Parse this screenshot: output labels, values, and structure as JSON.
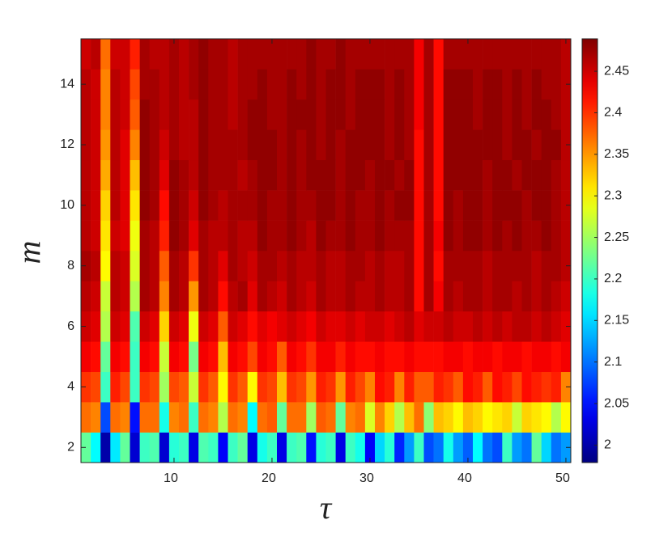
{
  "chart_data": {
    "type": "heatmap",
    "xlabel": "τ",
    "ylabel": "m",
    "colormap": "jet",
    "x": [
      1,
      2,
      3,
      4,
      5,
      6,
      7,
      8,
      9,
      10,
      11,
      12,
      13,
      14,
      15,
      16,
      17,
      18,
      19,
      20,
      21,
      22,
      23,
      24,
      25,
      26,
      27,
      28,
      29,
      30,
      31,
      32,
      33,
      34,
      35,
      36,
      37,
      38,
      39,
      40,
      41,
      42,
      43,
      44,
      45,
      46,
      47,
      48,
      49,
      50
    ],
    "y": [
      2,
      3,
      4,
      5,
      6,
      7,
      8,
      9,
      10,
      11,
      12,
      13,
      14,
      15
    ],
    "xlim": [
      0.5,
      50.5
    ],
    "ylim": [
      1.5,
      15.5
    ],
    "xticks": [
      10,
      20,
      30,
      40,
      50
    ],
    "yticks": [
      2,
      4,
      6,
      8,
      10,
      12,
      14
    ],
    "clim": [
      1.979,
      2.489
    ],
    "cticks": [
      2,
      2.05,
      2.1,
      2.15,
      2.2,
      2.25,
      2.3,
      2.35,
      2.4,
      2.45
    ],
    "z": [
      [
        2.22,
        2.17,
        2.0,
        2.16,
        2.22,
        2.02,
        2.2,
        2.21,
        2.02,
        2.19,
        2.2,
        2.03,
        2.21,
        2.2,
        2.04,
        2.2,
        2.22,
        2.03,
        2.18,
        2.2,
        2.03,
        2.2,
        2.21,
        2.05,
        2.19,
        2.2,
        2.03,
        2.2,
        2.18,
        2.04,
        2.15,
        2.19,
        2.06,
        2.12,
        2.2,
        2.08,
        2.1,
        2.18,
        2.12,
        2.09,
        2.17,
        2.1,
        2.08,
        2.2,
        2.12,
        2.1,
        2.22,
        2.15,
        2.1,
        2.12
      ],
      [
        2.37,
        2.36,
        2.08,
        2.37,
        2.36,
        2.05,
        2.37,
        2.37,
        2.18,
        2.36,
        2.37,
        2.2,
        2.37,
        2.36,
        2.26,
        2.37,
        2.36,
        2.17,
        2.37,
        2.38,
        2.22,
        2.37,
        2.37,
        2.25,
        2.38,
        2.37,
        2.22,
        2.36,
        2.37,
        2.28,
        2.36,
        2.32,
        2.26,
        2.33,
        2.37,
        2.24,
        2.33,
        2.32,
        2.3,
        2.33,
        2.32,
        2.3,
        2.31,
        2.32,
        2.27,
        2.32,
        2.31,
        2.3,
        2.26,
        2.3
      ],
      [
        2.4,
        2.39,
        2.2,
        2.41,
        2.39,
        2.2,
        2.4,
        2.39,
        2.25,
        2.39,
        2.38,
        2.27,
        2.4,
        2.38,
        2.3,
        2.4,
        2.38,
        2.3,
        2.4,
        2.39,
        2.33,
        2.4,
        2.39,
        2.35,
        2.41,
        2.4,
        2.35,
        2.41,
        2.39,
        2.36,
        2.42,
        2.41,
        2.36,
        2.41,
        2.38,
        2.38,
        2.41,
        2.4,
        2.38,
        2.42,
        2.41,
        2.38,
        2.42,
        2.41,
        2.39,
        2.42,
        2.41,
        2.4,
        2.41,
        2.36
      ],
      [
        2.43,
        2.42,
        2.22,
        2.43,
        2.42,
        2.2,
        2.43,
        2.42,
        2.27,
        2.43,
        2.42,
        2.23,
        2.43,
        2.42,
        2.33,
        2.43,
        2.42,
        2.39,
        2.43,
        2.42,
        2.38,
        2.43,
        2.42,
        2.4,
        2.43,
        2.43,
        2.41,
        2.43,
        2.42,
        2.42,
        2.43,
        2.42,
        2.42,
        2.43,
        2.42,
        2.42,
        2.42,
        2.43,
        2.43,
        2.42,
        2.43,
        2.43,
        2.42,
        2.43,
        2.43,
        2.42,
        2.43,
        2.43,
        2.42,
        2.43
      ],
      [
        2.45,
        2.44,
        2.26,
        2.45,
        2.44,
        2.21,
        2.45,
        2.44,
        2.32,
        2.45,
        2.44,
        2.29,
        2.45,
        2.44,
        2.38,
        2.45,
        2.44,
        2.42,
        2.44,
        2.43,
        2.44,
        2.45,
        2.44,
        2.43,
        2.45,
        2.44,
        2.44,
        2.45,
        2.44,
        2.45,
        2.45,
        2.44,
        2.45,
        2.46,
        2.44,
        2.45,
        2.45,
        2.46,
        2.45,
        2.45,
        2.46,
        2.45,
        2.46,
        2.45,
        2.46,
        2.46,
        2.45,
        2.46,
        2.45,
        2.44
      ],
      [
        2.46,
        2.45,
        2.27,
        2.46,
        2.45,
        2.26,
        2.47,
        2.46,
        2.36,
        2.47,
        2.46,
        2.35,
        2.47,
        2.46,
        2.42,
        2.46,
        2.47,
        2.44,
        2.47,
        2.46,
        2.45,
        2.47,
        2.46,
        2.45,
        2.47,
        2.46,
        2.46,
        2.47,
        2.46,
        2.46,
        2.47,
        2.46,
        2.46,
        2.47,
        2.42,
        2.47,
        2.43,
        2.47,
        2.46,
        2.47,
        2.47,
        2.46,
        2.47,
        2.47,
        2.46,
        2.47,
        2.46,
        2.47,
        2.46,
        2.45
      ],
      [
        2.47,
        2.46,
        2.3,
        2.46,
        2.45,
        2.28,
        2.47,
        2.46,
        2.38,
        2.47,
        2.46,
        2.4,
        2.47,
        2.46,
        2.44,
        2.47,
        2.46,
        2.45,
        2.47,
        2.47,
        2.46,
        2.47,
        2.46,
        2.46,
        2.47,
        2.46,
        2.46,
        2.47,
        2.47,
        2.46,
        2.47,
        2.46,
        2.46,
        2.47,
        2.42,
        2.47,
        2.42,
        2.47,
        2.47,
        2.47,
        2.47,
        2.46,
        2.47,
        2.47,
        2.47,
        2.47,
        2.46,
        2.47,
        2.47,
        2.46
      ],
      [
        2.46,
        2.45,
        2.31,
        2.45,
        2.44,
        2.29,
        2.47,
        2.46,
        2.41,
        2.48,
        2.47,
        2.44,
        2.47,
        2.46,
        2.46,
        2.47,
        2.46,
        2.46,
        2.48,
        2.47,
        2.47,
        2.48,
        2.47,
        2.46,
        2.48,
        2.47,
        2.47,
        2.48,
        2.47,
        2.47,
        2.48,
        2.47,
        2.47,
        2.47,
        2.42,
        2.47,
        2.43,
        2.48,
        2.47,
        2.48,
        2.48,
        2.47,
        2.48,
        2.47,
        2.48,
        2.47,
        2.47,
        2.48,
        2.47,
        2.46
      ],
      [
        2.46,
        2.45,
        2.32,
        2.46,
        2.44,
        2.31,
        2.48,
        2.47,
        2.42,
        2.48,
        2.47,
        2.45,
        2.48,
        2.47,
        2.46,
        2.47,
        2.47,
        2.47,
        2.48,
        2.47,
        2.47,
        2.48,
        2.47,
        2.47,
        2.48,
        2.48,
        2.47,
        2.48,
        2.47,
        2.47,
        2.48,
        2.47,
        2.48,
        2.48,
        2.42,
        2.47,
        2.42,
        2.48,
        2.47,
        2.48,
        2.48,
        2.47,
        2.48,
        2.48,
        2.48,
        2.47,
        2.48,
        2.48,
        2.47,
        2.46
      ],
      [
        2.46,
        2.45,
        2.34,
        2.46,
        2.44,
        2.33,
        2.48,
        2.47,
        2.44,
        2.48,
        2.47,
        2.46,
        2.48,
        2.47,
        2.47,
        2.47,
        2.46,
        2.47,
        2.48,
        2.48,
        2.47,
        2.48,
        2.47,
        2.48,
        2.48,
        2.48,
        2.47,
        2.48,
        2.48,
        2.47,
        2.48,
        2.48,
        2.47,
        2.48,
        2.42,
        2.47,
        2.42,
        2.48,
        2.48,
        2.48,
        2.48,
        2.47,
        2.48,
        2.48,
        2.47,
        2.48,
        2.48,
        2.48,
        2.47,
        2.46
      ],
      [
        2.46,
        2.45,
        2.35,
        2.46,
        2.44,
        2.36,
        2.48,
        2.47,
        2.45,
        2.47,
        2.46,
        2.46,
        2.48,
        2.47,
        2.47,
        2.47,
        2.47,
        2.48,
        2.48,
        2.48,
        2.47,
        2.48,
        2.47,
        2.48,
        2.47,
        2.48,
        2.47,
        2.48,
        2.48,
        2.48,
        2.48,
        2.47,
        2.48,
        2.47,
        2.42,
        2.47,
        2.42,
        2.48,
        2.48,
        2.48,
        2.48,
        2.48,
        2.48,
        2.47,
        2.48,
        2.48,
        2.47,
        2.48,
        2.48,
        2.46
      ],
      [
        2.46,
        2.45,
        2.36,
        2.46,
        2.45,
        2.38,
        2.48,
        2.47,
        2.46,
        2.47,
        2.46,
        2.46,
        2.48,
        2.47,
        2.47,
        2.46,
        2.47,
        2.48,
        2.48,
        2.47,
        2.47,
        2.48,
        2.48,
        2.48,
        2.47,
        2.48,
        2.48,
        2.47,
        2.48,
        2.48,
        2.48,
        2.47,
        2.48,
        2.47,
        2.43,
        2.47,
        2.42,
        2.48,
        2.48,
        2.48,
        2.47,
        2.48,
        2.48,
        2.47,
        2.48,
        2.47,
        2.48,
        2.48,
        2.47,
        2.46
      ],
      [
        2.46,
        2.45,
        2.36,
        2.46,
        2.45,
        2.39,
        2.47,
        2.47,
        2.46,
        2.47,
        2.46,
        2.47,
        2.48,
        2.47,
        2.47,
        2.46,
        2.47,
        2.47,
        2.48,
        2.47,
        2.47,
        2.48,
        2.47,
        2.48,
        2.47,
        2.48,
        2.48,
        2.47,
        2.48,
        2.48,
        2.48,
        2.47,
        2.48,
        2.47,
        2.43,
        2.47,
        2.42,
        2.48,
        2.48,
        2.48,
        2.47,
        2.48,
        2.48,
        2.47,
        2.48,
        2.47,
        2.48,
        2.47,
        2.47,
        2.46
      ],
      [
        2.45,
        2.46,
        2.37,
        2.45,
        2.45,
        2.41,
        2.47,
        2.46,
        2.46,
        2.47,
        2.46,
        2.47,
        2.48,
        2.47,
        2.47,
        2.46,
        2.47,
        2.47,
        2.47,
        2.47,
        2.47,
        2.47,
        2.47,
        2.48,
        2.47,
        2.47,
        2.48,
        2.47,
        2.47,
        2.47,
        2.47,
        2.47,
        2.47,
        2.47,
        2.43,
        2.47,
        2.42,
        2.47,
        2.47,
        2.47,
        2.47,
        2.47,
        2.47,
        2.47,
        2.47,
        2.47,
        2.47,
        2.47,
        2.47,
        2.46
      ]
    ]
  }
}
